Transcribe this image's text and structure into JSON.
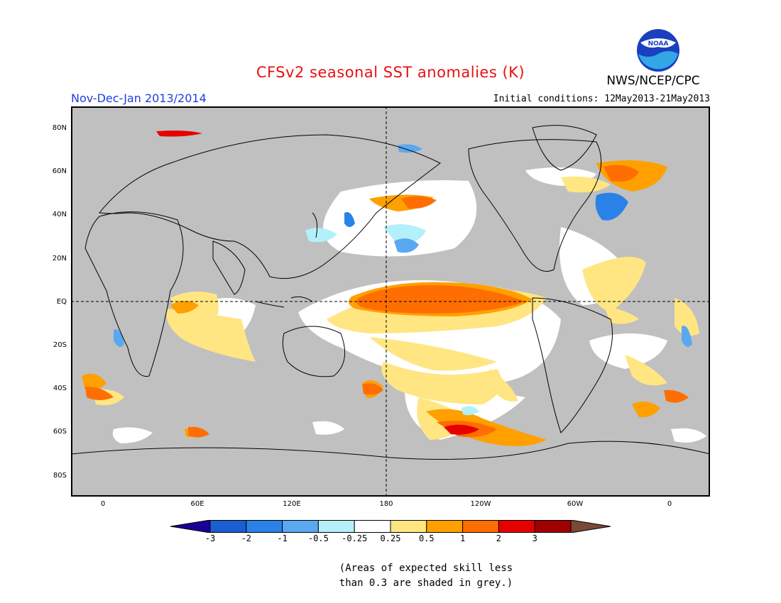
{
  "header": {
    "title": "CFSv2 seasonal SST anomalies (K)",
    "title_color": "#e8110f",
    "organization": "NWS/NCEP/CPC",
    "logo_text": "NOAA",
    "season": "Nov-Dec-Jan 2013/2014",
    "season_color": "#1f3ce0",
    "initial_conditions": "Initial conditions: 12May2013-21May2013"
  },
  "map": {
    "latitude_labels": [
      "80N",
      "60N",
      "40N",
      "20N",
      "EQ",
      "20S",
      "40S",
      "60S",
      "80S"
    ],
    "longitude_labels": [
      "0",
      "60E",
      "120E",
      "180",
      "120W",
      "60W",
      "0"
    ],
    "land_color": "#c0c0c0",
    "skill_mask_color": "#c0c0c0",
    "region_anomalies": [
      {
        "region": "Central-eastern equatorial Pacific",
        "anomaly_class": "1 to 2"
      },
      {
        "region": "Equatorial Pacific band",
        "anomaly_class": "0.5 to 1"
      },
      {
        "region": "Southeast Pacific (60S)",
        "anomaly_class": "2 to 3"
      },
      {
        "region": "North Pacific (40N)",
        "anomaly_class": "0.5 to 1"
      },
      {
        "region": "Northwest Atlantic (40N)",
        "anomaly_class": "-2 to -1"
      },
      {
        "region": "Northwest Pacific (40N)",
        "anomaly_class": "-1 to -0.5"
      },
      {
        "region": "North Atlantic (60N)",
        "anomaly_class": "0.5 to 1"
      },
      {
        "region": "Indian Ocean",
        "anomaly_class": "0.25 to 0.5"
      }
    ]
  },
  "colorbar": {
    "colors": [
      "#1c0096",
      "#1a5fd0",
      "#2a82e8",
      "#5aa8f0",
      "#b4f0fa",
      "#ffffff",
      "#ffe682",
      "#ffa000",
      "#ff6e00",
      "#e60000",
      "#a00000",
      "#7a4a36"
    ],
    "labels": [
      "-3",
      "-2",
      "-1",
      "-0.5",
      "-0.25",
      "0.25",
      "0.5",
      "1",
      "2",
      "3"
    ]
  },
  "footnote": {
    "line1": "(Areas of expected skill less",
    "line2": "than 0.3 are shaded in grey.)"
  }
}
